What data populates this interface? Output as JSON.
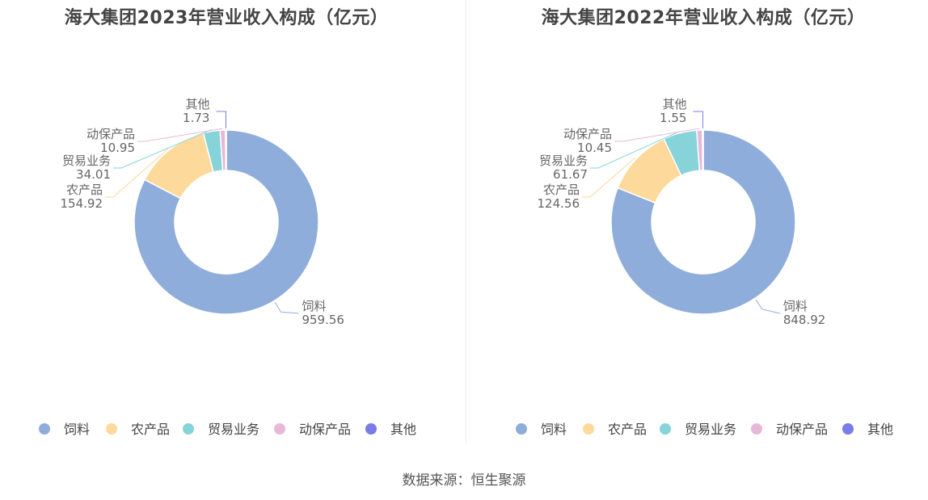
{
  "source": "数据来源：恒生聚源",
  "colors": {
    "饲料": "#8fadda",
    "农产品": "#fdd99b",
    "贸易业务": "#86d4d9",
    "动保产品": "#e8b8d9",
    "其他": "#7b7bea"
  },
  "chart_data": [
    {
      "type": "pie",
      "donut": true,
      "title": "海大集团2023年营业收入构成（亿元）",
      "categories": [
        "饲料",
        "农产品",
        "贸易业务",
        "动保产品",
        "其他"
      ],
      "values": [
        959.56,
        154.92,
        34.01,
        10.95,
        1.73
      ],
      "value_labels": [
        "959.56",
        "154.92",
        "34.01",
        "10.95",
        "1.73"
      ],
      "legend": "bottom"
    },
    {
      "type": "pie",
      "donut": true,
      "title": "海大集团2022年营业收入构成（亿元）",
      "categories": [
        "饲料",
        "农产品",
        "贸易业务",
        "动保产品",
        "其他"
      ],
      "values": [
        848.92,
        124.56,
        61.67,
        10.45,
        1.55
      ],
      "value_labels": [
        "848.92",
        "124.56",
        "61.67",
        "10.45",
        "1.55"
      ],
      "legend": "bottom"
    }
  ]
}
